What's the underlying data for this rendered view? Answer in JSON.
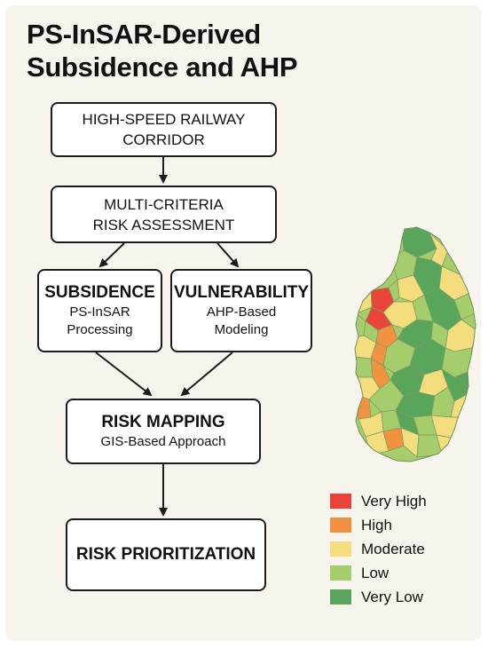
{
  "title": {
    "line1": "PS-InSAR-Derived",
    "line2": "Subsidence and AHP"
  },
  "flow": {
    "corridor": {
      "line1": "HIGH-SPEED RAILWAY",
      "line2": "CORRIDOR"
    },
    "assessment": {
      "line1": "MULTI-CRITERIA",
      "line2": "RISK ASSESSMENT"
    },
    "subsidence": {
      "heading": "SUBSIDENCE",
      "line1": "PS-InSAR",
      "line2": "Processing"
    },
    "vulnerability": {
      "heading": "VULNERABILITY",
      "line1": "AHP-Based",
      "line2": "Modeling"
    },
    "mapping": {
      "heading": "RISK MAPPING",
      "sub": "GIS-Based Approach"
    },
    "prioritization": {
      "label": "RISK PRIORITIZATION"
    }
  },
  "map": {
    "colors": {
      "very_high": "#e8443a",
      "high": "#f0923f",
      "moderate": "#f3dd7c",
      "low": "#a6cd6c",
      "very_low": "#5aa55c"
    }
  },
  "legend": [
    {
      "label": "Very High",
      "color": "#e8443a"
    },
    {
      "label": "High",
      "color": "#f0923f"
    },
    {
      "label": "Moderate",
      "color": "#f3dd7c"
    },
    {
      "label": "Low",
      "color": "#a6cd6c"
    },
    {
      "label": "Very Low",
      "color": "#5aa55c"
    }
  ]
}
